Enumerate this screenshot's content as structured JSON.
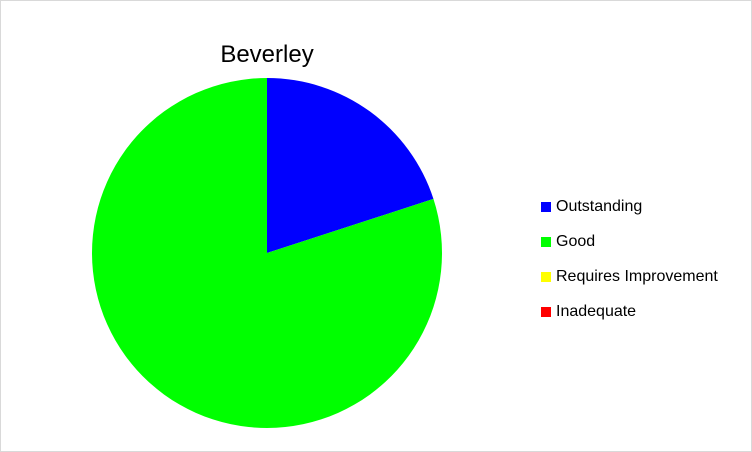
{
  "chart_data": {
    "type": "pie",
    "title": "Beverley",
    "categories": [
      "Outstanding",
      "Good",
      "Requires Improvement",
      "Inadequate"
    ],
    "values": [
      20,
      80,
      0,
      0
    ],
    "unit": "%",
    "colors": [
      "#0000ff",
      "#00ff00",
      "#ffff00",
      "#ff0000"
    ],
    "start_angle_deg": 0,
    "direction": "clockwise",
    "legend": "right"
  }
}
